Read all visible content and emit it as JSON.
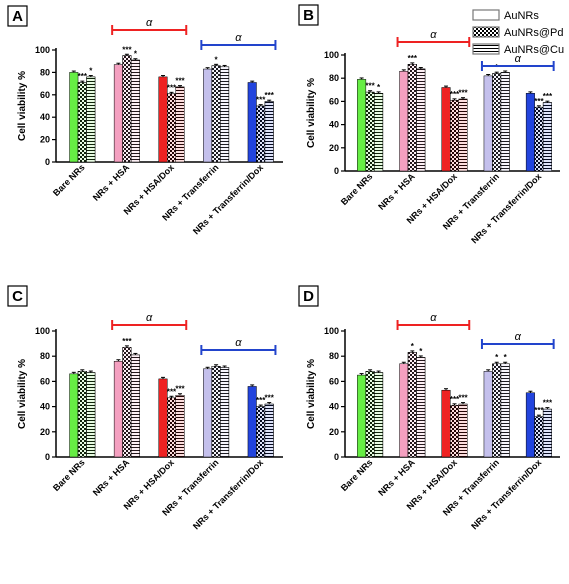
{
  "legend": [
    "AuNRs",
    "AuNRs@Pd",
    "AuNRs@Cu"
  ],
  "colors": {
    "bare": "#66ee44",
    "hsa": "#f4a0c0",
    "hsadox": "#ee2222",
    "trans": "#c4c0ec",
    "transdox": "#2244dd",
    "red_bracket": "#ee2222",
    "blue_bracket": "#2244cc"
  },
  "chart_data": [
    {
      "panel": "A",
      "type": "bar",
      "ylabel": "Cell viability %",
      "ylim": [
        0,
        100
      ],
      "yticks": [
        "0",
        "20",
        "40",
        "60",
        "80",
        "100"
      ],
      "categories": [
        "Bare NRs",
        "NRs + HSA",
        "NRs + HSA/Dox",
        "NRs + Transferrin",
        "NRs + Transferrin/Dox"
      ],
      "series": [
        {
          "name": "AuNRs",
          "values": [
            80,
            87,
            76,
            83,
            71
          ]
        },
        {
          "name": "AuNRs@Pd",
          "values": [
            71,
            95,
            61,
            86,
            50
          ]
        },
        {
          "name": "AuNRs@Cu",
          "values": [
            76,
            91,
            67,
            85,
            54
          ]
        }
      ],
      "significance": [
        [
          "",
          "***",
          "*"
        ],
        [
          "",
          "***",
          "*"
        ],
        [
          "",
          "***",
          "***"
        ],
        [
          "",
          "*",
          ""
        ],
        [
          "",
          "***",
          "***"
        ]
      ],
      "brackets": [
        {
          "label": "α",
          "color": "red",
          "from": 1,
          "to": 2
        },
        {
          "label": "α",
          "color": "blue",
          "from": 3,
          "to": 4
        }
      ]
    },
    {
      "panel": "B",
      "type": "bar",
      "ylabel": "Cell viability %",
      "ylim": [
        0,
        100
      ],
      "yticks": [
        "0",
        "20",
        "40",
        "60",
        "80",
        "100"
      ],
      "categories": [
        "Bare NRs",
        "NRs + HSA",
        "NRs + HSA/Dox",
        "NRs + Transferrin",
        "NRs + Transferrin/Dox"
      ],
      "series": [
        {
          "name": "AuNRs",
          "values": [
            79,
            86,
            72,
            82,
            67
          ]
        },
        {
          "name": "AuNRs@Pd",
          "values": [
            68,
            92,
            61,
            84,
            55
          ]
        },
        {
          "name": "AuNRs@Cu",
          "values": [
            67,
            88,
            62,
            85,
            59
          ]
        }
      ],
      "significance": [
        [
          "",
          "***",
          "*"
        ],
        [
          "",
          "***",
          ""
        ],
        [
          "",
          "***",
          "***"
        ],
        [
          "",
          "*",
          ""
        ],
        [
          "",
          "***",
          "***"
        ]
      ],
      "brackets": [
        {
          "label": "α",
          "color": "red",
          "from": 1,
          "to": 2
        },
        {
          "label": "α",
          "color": "blue",
          "from": 3,
          "to": 4
        }
      ]
    },
    {
      "panel": "C",
      "type": "bar",
      "ylabel": "Cell viability %",
      "ylim": [
        0,
        100
      ],
      "yticks": [
        "0",
        "20",
        "40",
        "60",
        "80",
        "100"
      ],
      "categories": [
        "Bare NRs",
        "NRs + HSA",
        "NRs + HSA/Dox",
        "NRs + Transferrin",
        "NRs + Transferrin/Dox"
      ],
      "series": [
        {
          "name": "AuNRs",
          "values": [
            66,
            76,
            62,
            70,
            56
          ]
        },
        {
          "name": "AuNRs@Pd",
          "values": [
            68,
            87,
            47,
            72,
            40
          ]
        },
        {
          "name": "AuNRs@Cu",
          "values": [
            67,
            81,
            49,
            71,
            42
          ]
        }
      ],
      "significance": [
        [
          "",
          "",
          ""
        ],
        [
          "",
          "***",
          ""
        ],
        [
          "",
          "***",
          "***"
        ],
        [
          "",
          "",
          ""
        ],
        [
          "",
          "***",
          "***"
        ]
      ],
      "brackets": [
        {
          "label": "α",
          "color": "red",
          "from": 1,
          "to": 2
        },
        {
          "label": "α",
          "color": "blue",
          "from": 3,
          "to": 4
        }
      ]
    },
    {
      "panel": "D",
      "type": "bar",
      "ylabel": "Cell viability %",
      "ylim": [
        0,
        100
      ],
      "yticks": [
        "0",
        "20",
        "40",
        "60",
        "80",
        "100"
      ],
      "categories": [
        "Bare NRs",
        "NRs + HSA",
        "NRs + HSA/Dox",
        "NRs + Transferrin",
        "NRs + Transferrin/Dox"
      ],
      "series": [
        {
          "name": "AuNRs",
          "values": [
            65,
            74,
            53,
            68,
            51
          ]
        },
        {
          "name": "AuNRs@Pd",
          "values": [
            68,
            83,
            41,
            74,
            32
          ]
        },
        {
          "name": "AuNRs@Cu",
          "values": [
            67,
            79,
            42,
            74,
            38
          ]
        }
      ],
      "significance": [
        [
          "",
          "",
          ""
        ],
        [
          "",
          "*",
          "*"
        ],
        [
          "",
          "***",
          "***"
        ],
        [
          "",
          "*",
          "*"
        ],
        [
          "",
          "***",
          "***"
        ]
      ],
      "brackets": [
        {
          "label": "α",
          "color": "red",
          "from": 1,
          "to": 2
        },
        {
          "label": "α",
          "color": "blue",
          "from": 3,
          "to": 4
        }
      ]
    }
  ]
}
